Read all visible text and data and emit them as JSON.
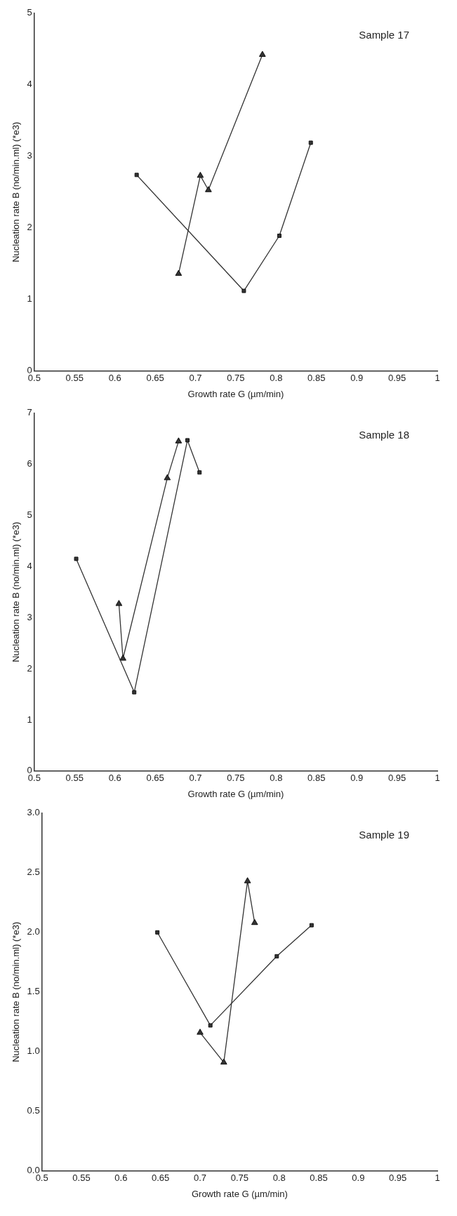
{
  "chart_data": [
    {
      "type": "line",
      "title": "Sample 17",
      "xlabel": "Growth rate G (µm/min)",
      "ylabel": "Nucleation rate B (no/min.ml) (*e3)",
      "xlim": [
        0.5,
        1
      ],
      "xticks": [
        0.5,
        0.55,
        0.6,
        0.65,
        0.7,
        0.75,
        0.8,
        0.85,
        0.9,
        0.95,
        1
      ],
      "ylim": [
        0,
        5
      ],
      "yticks": [
        0,
        1,
        2,
        3,
        4,
        5
      ],
      "legend": false,
      "grid": false,
      "line_style": "solid",
      "series": [
        {
          "color": "#333333",
          "marker": "square",
          "x": [
            0.627,
            0.76,
            0.804,
            0.843
          ],
          "values": [
            2.74,
            1.12,
            1.89,
            3.19
          ]
        },
        {
          "color": "#333333",
          "marker": "triangle",
          "x": [
            0.679,
            0.706,
            0.716,
            0.783
          ],
          "values": [
            1.36,
            2.73,
            2.53,
            4.42
          ]
        }
      ]
    },
    {
      "type": "line",
      "title": "Sample 18",
      "xlabel": "Growth rate G (µm/min)",
      "ylabel": "Nucleation rate B (no/min.ml) (*e3)",
      "xlim": [
        0.5,
        1
      ],
      "xticks": [
        0.5,
        0.55,
        0.6,
        0.65,
        0.7,
        0.75,
        0.8,
        0.85,
        0.9,
        0.95,
        1
      ],
      "ylim": [
        0,
        7
      ],
      "yticks": [
        0,
        1,
        2,
        3,
        4,
        5,
        6,
        7
      ],
      "legend": false,
      "grid": false,
      "line_style": "solid",
      "series": [
        {
          "color": "#333333",
          "marker": "square",
          "x": [
            0.552,
            0.624,
            0.69,
            0.705
          ],
          "values": [
            4.15,
            1.54,
            6.47,
            5.84
          ]
        },
        {
          "color": "#333333",
          "marker": "triangle",
          "x": [
            0.605,
            0.61,
            0.665,
            0.679
          ],
          "values": [
            3.27,
            2.2,
            5.73,
            6.45
          ]
        }
      ]
    },
    {
      "type": "line",
      "title": "Sample 19",
      "xlabel": "Growth rate G (µm/min)",
      "ylabel": "Nucleation rate B (no/min.ml) (*e3)",
      "xlim": [
        0.5,
        1
      ],
      "xticks": [
        0.5,
        0.55,
        0.6,
        0.65,
        0.7,
        0.75,
        0.8,
        0.85,
        0.9,
        0.95,
        1
      ],
      "ylim": [
        0,
        3
      ],
      "yticks": [
        {
          "value": 0,
          "label": "0.0"
        },
        {
          "value": 0.5,
          "label": "0.5"
        },
        {
          "value": 1,
          "label": "1.0"
        },
        {
          "value": 1.5,
          "label": "1.5"
        },
        {
          "value": 2,
          "label": "2.0"
        },
        {
          "value": 2.5,
          "label": "2.5"
        },
        {
          "value": 3,
          "label": "3.0"
        }
      ],
      "legend": false,
      "grid": false,
      "line_style": "solid",
      "series": [
        {
          "color": "#333333",
          "marker": "square",
          "x": [
            0.646,
            0.713,
            0.797,
            0.841
          ],
          "values": [
            2.0,
            1.22,
            1.8,
            2.06
          ]
        },
        {
          "color": "#333333",
          "marker": "triangle",
          "x": [
            0.7,
            0.73,
            0.76,
            0.769
          ],
          "values": [
            1.16,
            0.91,
            2.43,
            2.08
          ]
        }
      ]
    }
  ]
}
